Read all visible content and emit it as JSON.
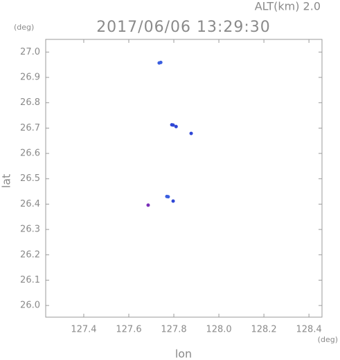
{
  "chart_data": {
    "type": "scatter",
    "title": "2017/06/06 13:29:30",
    "annotation": "ALT(km) 2.0",
    "y_unit": "(deg)",
    "x_unit": "(deg)",
    "xlabel": "lon",
    "ylabel": "lat",
    "x": [
      127.735,
      127.742,
      127.791,
      127.797,
      127.81,
      127.877,
      127.769,
      127.775,
      127.797,
      127.686
    ],
    "values": [
      26.957,
      26.959,
      26.713,
      26.712,
      26.706,
      26.679,
      26.43,
      26.429,
      26.412,
      26.396
    ],
    "colors": [
      "#3a5ee0",
      "#3a5ee0",
      "#2f47d6",
      "#2f47d6",
      "#2f47d6",
      "#2f47d6",
      "#3a5ee0",
      "#3a5ee0",
      "#2f47d6",
      "#7a2fb8"
    ],
    "xlim": [
      127.231,
      128.458
    ],
    "ylim": [
      25.954,
      27.05
    ],
    "xticks": [
      127.4,
      127.6,
      127.8,
      {
        "value": 128.0,
        "label": "128.0"
      },
      128.2,
      128.4
    ],
    "yticks": [
      {
        "value": 26.0,
        "label": "26.0"
      },
      26.1,
      26.2,
      26.3,
      26.4,
      26.5,
      26.6,
      26.7,
      26.8,
      26.9,
      {
        "value": 27.0,
        "label": "27.0"
      }
    ]
  }
}
